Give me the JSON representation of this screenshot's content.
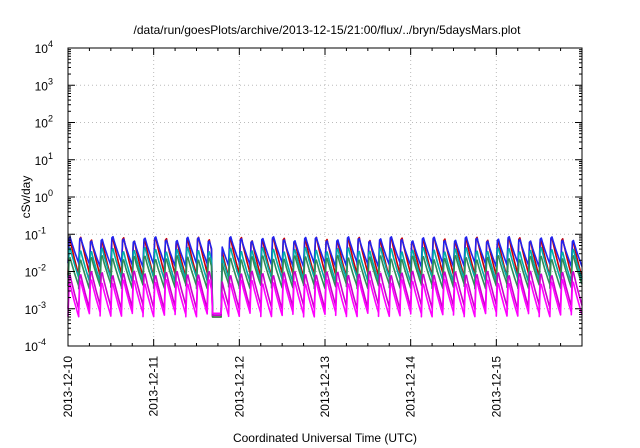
{
  "chart_data": {
    "type": "line",
    "title": "/data/run/goesPlots/archive/2013-12-15/21:00/flux/../bryn/5daysMars.plot",
    "xlabel": "Coordinated Universal Time (UTC)",
    "ylabel": "cSv/day",
    "yscale": "log",
    "ylim": [
      0.0001,
      10000
    ],
    "xlim": [
      "2013-12-10 00:00",
      "2013-12-16 00:00"
    ],
    "grid": true,
    "y_ticks": [
      {
        "base": "10",
        "exp": "4"
      },
      {
        "base": "10",
        "exp": "3"
      },
      {
        "base": "10",
        "exp": "2"
      },
      {
        "base": "10",
        "exp": "1"
      },
      {
        "base": "10",
        "exp": "0"
      },
      {
        "base": "10",
        "exp": "-1"
      },
      {
        "base": "10",
        "exp": "-2"
      },
      {
        "base": "10",
        "exp": "-3"
      },
      {
        "base": "10",
        "exp": "-4"
      }
    ],
    "x_ticks": [
      "2013-12-10",
      "2013-12-11",
      "2013-12-12",
      "2013-12-13",
      "2013-12-14",
      "2013-12-15"
    ],
    "series_peak_min": [
      {
        "color": "#cc0000",
        "peak": 0.1,
        "min": 0.008
      },
      {
        "color": "#2222ee",
        "peak": 0.095,
        "min": 0.015
      },
      {
        "color": "#00aaaa",
        "peak": 0.05,
        "min": 0.006
      },
      {
        "color": "#2e8b57",
        "peak": 0.03,
        "min": 0.004
      },
      {
        "color": "#cc00cc",
        "peak": 0.012,
        "min": 0.0011
      },
      {
        "color": "#ff00ff",
        "peak": 0.007,
        "min": 0.0007
      }
    ],
    "cycles_per_day": 8,
    "dropout": {
      "start": "2013-12-11 16:30",
      "end": "2013-12-11 19:00",
      "value": 0.0006
    }
  }
}
